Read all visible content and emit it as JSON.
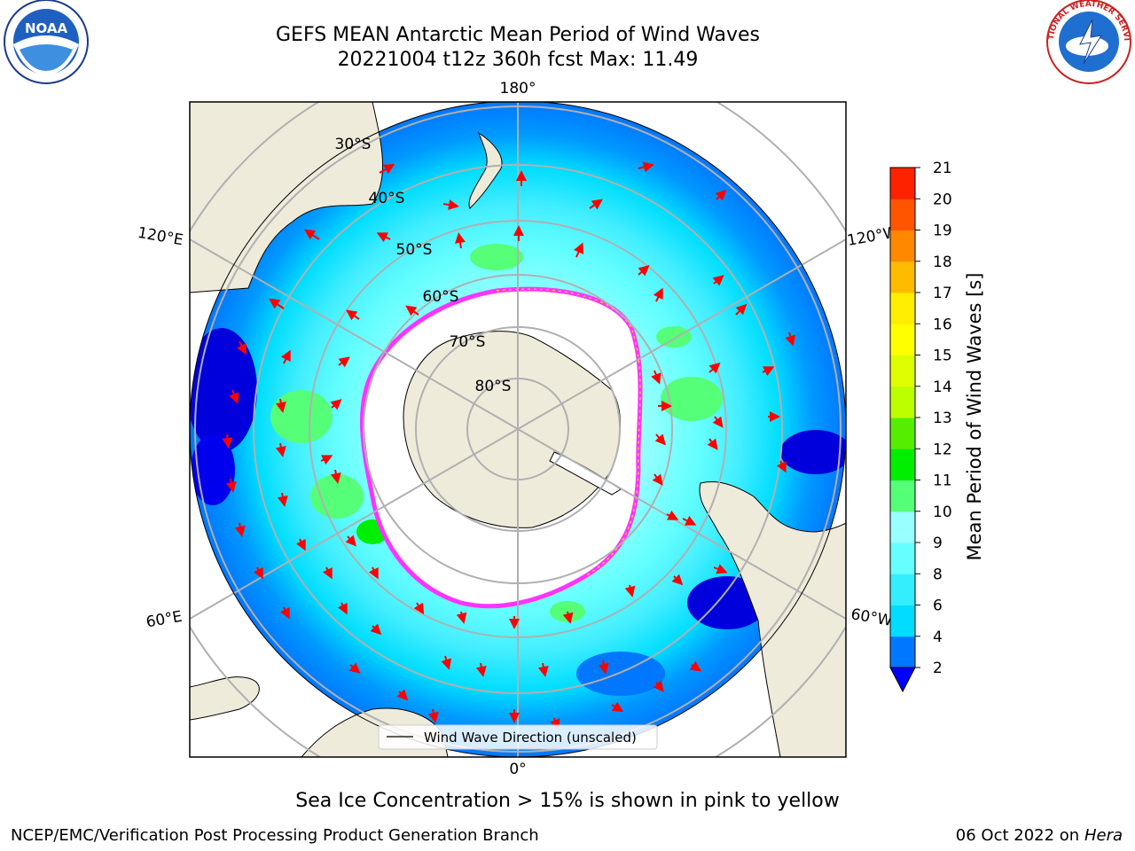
{
  "title": {
    "line1": "GEFS MEAN Antarctic Mean Period of Wind Waves",
    "line2": "20221004 t12z 360h fcst    Max: 11.49"
  },
  "map": {
    "projection": "south-polar-stereographic",
    "longitude_labels": {
      "top": "180°",
      "bottom": "0°",
      "left_upper": "120°E",
      "left_lower": "60°E",
      "right_upper": "120°W",
      "right_lower": "60°W"
    },
    "latitude_labels": [
      "30°S",
      "40°S",
      "50°S",
      "60°S",
      "70°S",
      "80°S"
    ],
    "ocean_colors": [
      "#0000dd",
      "#0077ff",
      "#00ddff",
      "#44eeff",
      "#99ffff",
      "#55ff77",
      "#00ee00"
    ],
    "land_color": "#efebdb",
    "ice_colors": [
      "#ff33ff",
      "#ffbb44",
      "#ffee55"
    ],
    "arrow_color": "#ff0000",
    "legend": {
      "label": "Wind Wave Direction (unscaled)"
    }
  },
  "colorbar": {
    "title": "Mean Period of Wind Waves [s]",
    "ticks": [
      "2",
      "4",
      "6",
      "8",
      "9",
      "10",
      "11",
      "12",
      "13",
      "14",
      "15",
      "16",
      "17",
      "18",
      "19",
      "20",
      "21"
    ],
    "colors": [
      "#0077ff",
      "#00ddff",
      "#33eeff",
      "#66ffff",
      "#99ffff",
      "#55ff77",
      "#00ee00",
      "#55ee00",
      "#bbff00",
      "#ddff00",
      "#ffff00",
      "#ffee00",
      "#ffbb00",
      "#ff8800",
      "#ff5500",
      "#ff2200"
    ],
    "under_color": "#0000ff",
    "max_value": 11.49
  },
  "footer": {
    "note": "Sea Ice Concentration > 15% is shown in pink to yellow",
    "credit_left": "NCEP/EMC/Verification Post Processing Product Generation Branch",
    "date": "06 Oct 2022 on",
    "machine": "Hera"
  },
  "logos": {
    "left": "NOAA",
    "right": "NATIONAL WEATHER SERVICE"
  }
}
